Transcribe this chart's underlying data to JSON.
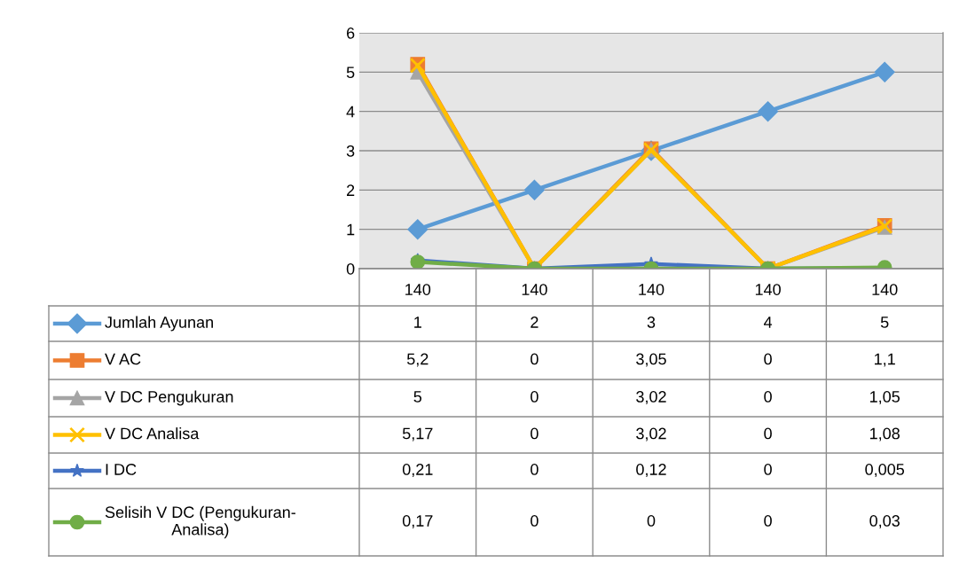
{
  "chart_data": {
    "type": "line",
    "categories": [
      "140",
      "140",
      "140",
      "140",
      "140"
    ],
    "ylim": [
      0,
      6
    ],
    "yticks": [
      0,
      1,
      2,
      3,
      4,
      5,
      6
    ],
    "grid": "y",
    "legend": "left",
    "line_style": "solid",
    "series": [
      {
        "name": "Jumlah Ayunan",
        "color": "#5b9bd5",
        "marker": "diamond",
        "values": [
          1,
          2,
          3,
          4,
          5
        ],
        "value_labels": [
          "1",
          "2",
          "3",
          "4",
          "5"
        ]
      },
      {
        "name": "V AC",
        "color": "#ed7d31",
        "marker": "square",
        "values": [
          5.2,
          0,
          3.05,
          0,
          1.1
        ],
        "value_labels": [
          "5,2",
          "0",
          "3,05",
          "0",
          "1,1"
        ]
      },
      {
        "name": "V DC Pengukuran",
        "color": "#a5a5a5",
        "marker": "triangle",
        "values": [
          5,
          0,
          3.02,
          0,
          1.05
        ],
        "value_labels": [
          "5",
          "0",
          "3,02",
          "0",
          "1,05"
        ]
      },
      {
        "name": "V DC Analisa",
        "color": "#ffc000",
        "marker": "cross",
        "values": [
          5.17,
          0,
          3.02,
          0,
          1.08
        ],
        "value_labels": [
          "5,17",
          "0",
          "3,02",
          "0",
          "1,08"
        ]
      },
      {
        "name": "I DC",
        "color": "#4472c4",
        "marker": "star",
        "values": [
          0.21,
          0,
          0.12,
          0,
          0.005
        ],
        "value_labels": [
          "0,21",
          "0",
          "0,12",
          "0",
          "0,005"
        ]
      },
      {
        "name": "Selisih V DC (Pengukuran-Analisa)",
        "color": "#70ad47",
        "marker": "circle",
        "values": [
          0.17,
          0,
          0,
          0,
          0.03
        ],
        "value_labels": [
          "0,17",
          "0",
          "0",
          "0",
          "0,03"
        ]
      }
    ]
  }
}
